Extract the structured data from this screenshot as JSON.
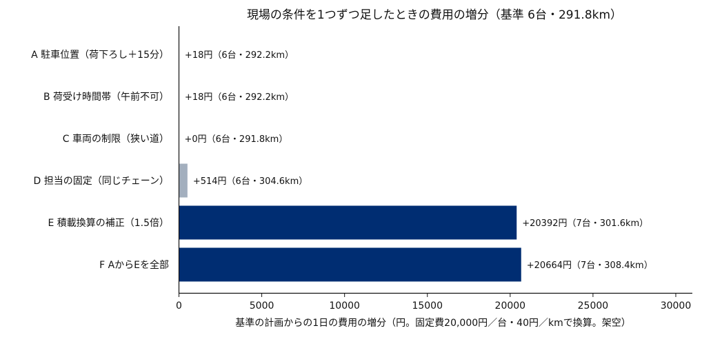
{
  "chart_data": {
    "type": "bar",
    "orientation": "horizontal",
    "title": "現場の条件を1つずつ足したときの費用の増分（基準 6台・291.8km）",
    "xlabel": "基準の計画からの1日の費用の増分（円。固定費20,000円／台・40円／kmで換算。架空）",
    "ylabel": "",
    "xlim": [
      0,
      31000
    ],
    "x_ticks": [
      0,
      5000,
      10000,
      15000,
      20000,
      25000,
      30000
    ],
    "x_tick_labels": [
      "0",
      "5000",
      "10000",
      "15000",
      "20000",
      "25000",
      "30000"
    ],
    "grid": false,
    "categories": [
      "A 駐車位置（荷下ろし＋15分）",
      "B 荷受け時間帯（午前不可）",
      "C 車両の制限（狭い道）",
      "D 担当の固定（同じチェーン）",
      "E 積載換算の補正（1.5倍）",
      "F AからEを全部"
    ],
    "values": [
      18,
      18,
      0,
      514,
      20392,
      20664
    ],
    "data_labels": [
      "+18円（6台・292.2km）",
      "+18円（6台・292.2km）",
      "+0円（6台・291.8km）",
      "+514円（6台・304.6km）",
      "+20392円（7台・301.6km）",
      "+20664円（7台・308.4km）"
    ],
    "bar_colors": [
      "#a3afbe",
      "#a3afbe",
      "#a3afbe",
      "#a3afbe",
      "#002d72",
      "#002d72"
    ]
  }
}
